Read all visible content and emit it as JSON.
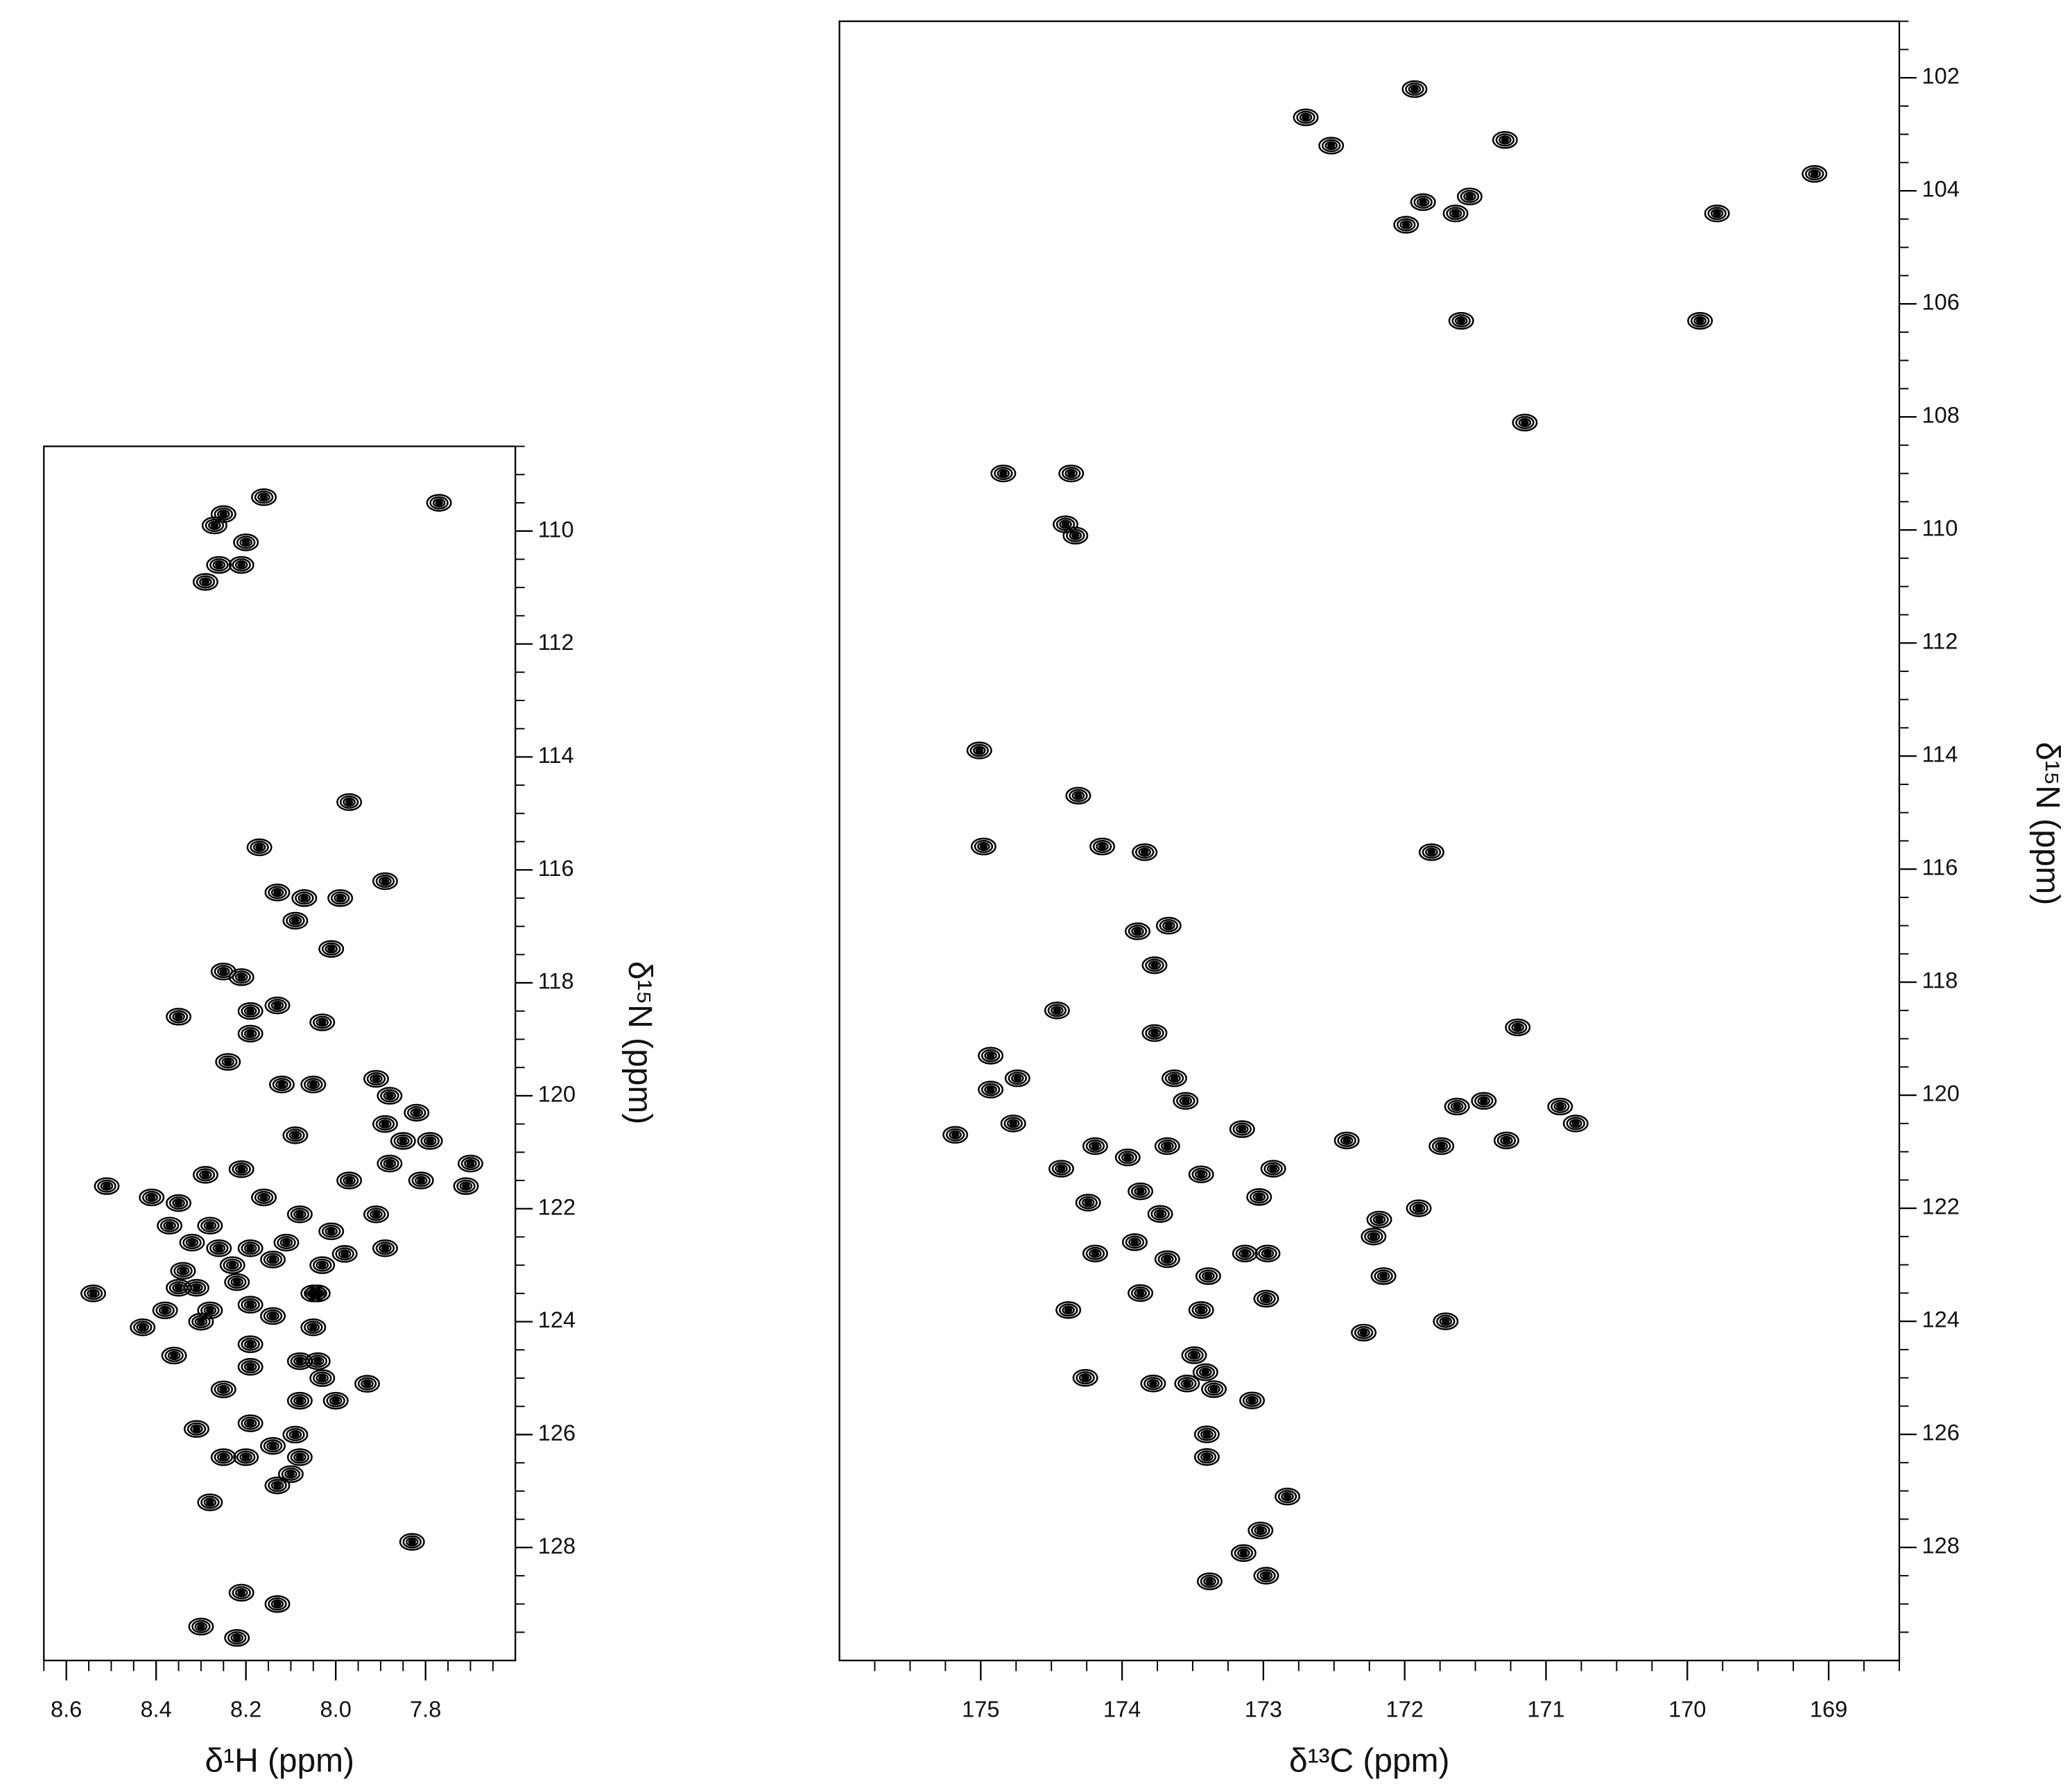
{
  "chart_data": [
    {
      "type": "scatter",
      "x_label": "δ¹H (ppm)",
      "y_label": "δ¹⁵N (ppm)",
      "color": "#000000",
      "xlim": [
        8.65,
        7.6
      ],
      "ylim": [
        108.5,
        130
      ],
      "xticks": [
        8.6,
        8.4,
        8.2,
        {
          "value": 8,
          "label": "8.0"
        },
        7.8
      ],
      "yticks": [
        110,
        112,
        114,
        116,
        118,
        120,
        122,
        124,
        126,
        128
      ],
      "x": [
        8.25,
        8.16,
        7.77,
        8.27,
        8.2,
        8.26,
        8.21,
        8.29,
        7.97,
        8.17,
        8.13,
        8.07,
        7.99,
        7.89,
        8.09,
        8.01,
        8.25,
        8.21,
        8.19,
        8.13,
        8.35,
        8.03,
        8.19,
        8.24,
        8.12,
        8.05,
        7.91,
        7.88,
        7.82,
        7.89,
        8.09,
        7.85,
        7.79,
        7.81,
        7.88,
        7.7,
        7.71,
        8.51,
        8.29,
        8.21,
        8.41,
        8.35,
        8.16,
        8.08,
        7.97,
        7.91,
        8.37,
        8.28,
        8.32,
        8.26,
        8.19,
        8.11,
        8.01,
        7.98,
        7.89,
        8.34,
        8.23,
        8.14,
        8.03,
        8.31,
        8.22,
        8.05,
        8.54,
        8.35,
        8.38,
        8.28,
        8.19,
        8.14,
        8.04,
        8.43,
        8.3,
        8.05,
        8.19,
        8.19,
        8.36,
        8.08,
        8.04,
        8.03,
        7.93,
        8.25,
        8.08,
        8.0,
        8.19,
        8.31,
        8.09,
        8.14,
        8.25,
        8.2,
        8.08,
        8.1,
        8.13,
        8.28,
        7.83,
        8.21,
        8.13,
        8.3,
        8.22
      ],
      "y": [
        109.7,
        109.4,
        109.5,
        109.9,
        110.2,
        110.6,
        110.6,
        110.9,
        114.8,
        115.6,
        116.4,
        116.5,
        116.5,
        116.2,
        116.9,
        117.4,
        117.8,
        117.9,
        118.5,
        118.4,
        118.6,
        118.7,
        118.9,
        119.4,
        119.8,
        119.8,
        119.7,
        120.0,
        120.3,
        120.5,
        120.7,
        120.8,
        120.8,
        121.5,
        121.2,
        121.2,
        121.6,
        121.6,
        121.4,
        121.3,
        121.8,
        121.9,
        121.8,
        122.1,
        121.5,
        122.1,
        122.3,
        122.3,
        122.6,
        122.7,
        122.7,
        122.6,
        122.4,
        122.8,
        122.7,
        123.1,
        123.0,
        122.9,
        123.0,
        123.4,
        123.3,
        123.5,
        123.5,
        123.4,
        123.8,
        123.8,
        123.7,
        123.9,
        123.5,
        124.1,
        124.0,
        124.1,
        124.4,
        124.8,
        124.6,
        124.7,
        124.7,
        125.0,
        125.1,
        125.2,
        125.4,
        125.4,
        125.8,
        125.9,
        126.0,
        126.2,
        126.4,
        126.4,
        126.4,
        126.7,
        126.9,
        127.2,
        127.9,
        128.8,
        129.0,
        129.4,
        129.6
      ]
    },
    {
      "type": "scatter",
      "x_label": "δ¹³C (ppm)",
      "y_label": "δ¹⁵N (ppm)",
      "color": "#000000",
      "xlim": [
        176,
        168.5
      ],
      "ylim": [
        101,
        130
      ],
      "xticks": [
        175,
        174,
        173,
        172,
        171,
        170,
        169
      ],
      "yticks": [
        102,
        104,
        106,
        108,
        110,
        112,
        114,
        116,
        118,
        120,
        122,
        124,
        126,
        128
      ],
      "x": [
        172.7,
        171.93,
        172.52,
        171.29,
        171.87,
        171.99,
        171.64,
        171.54,
        171.6,
        169.91,
        169.79,
        169.1,
        171.15,
        174.84,
        174.36,
        174.4,
        174.33,
        175.01,
        174.31,
        174.98,
        174.14,
        173.84,
        171.81,
        173.89,
        173.67,
        173.77,
        174.46,
        173.77,
        171.2,
        174.93,
        174.74,
        174.93,
        173.63,
        171.44,
        173.55,
        171.63,
        170.9,
        170.79,
        171.74,
        171.28,
        174.77,
        175.18,
        173.15,
        172.93,
        172.41,
        173.03,
        171.9,
        172.18,
        172.22,
        172.15,
        172.29,
        173.13,
        172.97,
        172.98,
        174.19,
        174.38,
        173.39,
        171.71,
        174.26,
        173.78,
        173.41,
        173.08,
        173.4,
        173.4,
        172.83,
        173.02,
        173.14,
        172.98,
        173.38,
        174.19,
        174.43,
        173.96,
        173.68,
        173.44,
        173.87,
        174.24,
        173.73,
        173.91,
        173.68,
        173.87,
        173.44,
        173.49,
        173.54,
        173.35
      ],
      "y": [
        102.7,
        102.2,
        103.2,
        103.1,
        104.2,
        104.6,
        104.4,
        104.1,
        106.3,
        106.3,
        104.4,
        103.7,
        108.1,
        109.0,
        109.0,
        109.9,
        110.1,
        113.9,
        114.7,
        115.6,
        115.6,
        115.7,
        115.7,
        117.1,
        117.0,
        117.7,
        118.5,
        118.9,
        118.8,
        119.3,
        119.7,
        119.9,
        119.7,
        120.1,
        120.1,
        120.2,
        120.2,
        120.5,
        120.9,
        120.8,
        120.5,
        120.7,
        120.6,
        121.3,
        120.8,
        121.8,
        122.0,
        122.2,
        122.5,
        123.2,
        124.2,
        122.8,
        122.8,
        123.6,
        122.8,
        123.8,
        123.2,
        124.0,
        125.0,
        125.1,
        124.9,
        125.4,
        126.0,
        126.4,
        127.1,
        127.7,
        128.1,
        128.5,
        128.6,
        120.9,
        121.3,
        121.1,
        120.9,
        121.4,
        121.7,
        121.9,
        122.1,
        122.6,
        122.9,
        123.5,
        123.8,
        124.6,
        125.1,
        125.2
      ]
    }
  ]
}
